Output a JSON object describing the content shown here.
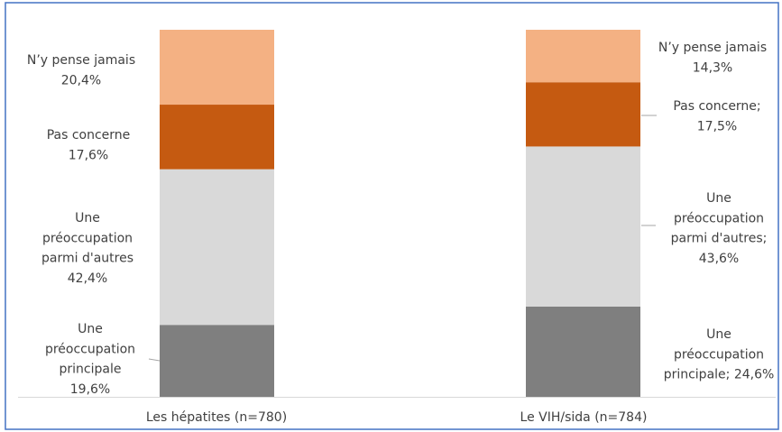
{
  "chart_data": {
    "type": "stacked_bar",
    "categories": [
      "Les hépatites (n=780)",
      "Le VIH/sida (n=784)"
    ],
    "ylim": [
      0,
      100
    ],
    "series": [
      {
        "color": "#7f7f7f",
        "values": [
          19.6,
          24.6
        ],
        "value_labels": [
          "Une\npréoccupation\nprincipale\n19,6%",
          "Une\npréoccupation\nprincipale; 24,6%"
        ]
      },
      {
        "color": "#d9d9d9",
        "values": [
          42.4,
          43.6
        ],
        "value_labels": [
          "Une\npréoccupation\nparmi d'autres\n42,4%",
          "Une\npréoccupation\nparmi d'autres;\n43,6%"
        ]
      },
      {
        "color": "#c55a11",
        "values": [
          17.6,
          17.5
        ],
        "value_labels": [
          "Pas concerne\n17,6%",
          "Pas concerne;\n17,5%"
        ]
      },
      {
        "color": "#f4b183",
        "values": [
          20.4,
          14.3
        ],
        "value_labels": [
          "N’y pense jamais\n20,4%",
          "N’y pense jamais\n14,3%"
        ]
      }
    ]
  }
}
